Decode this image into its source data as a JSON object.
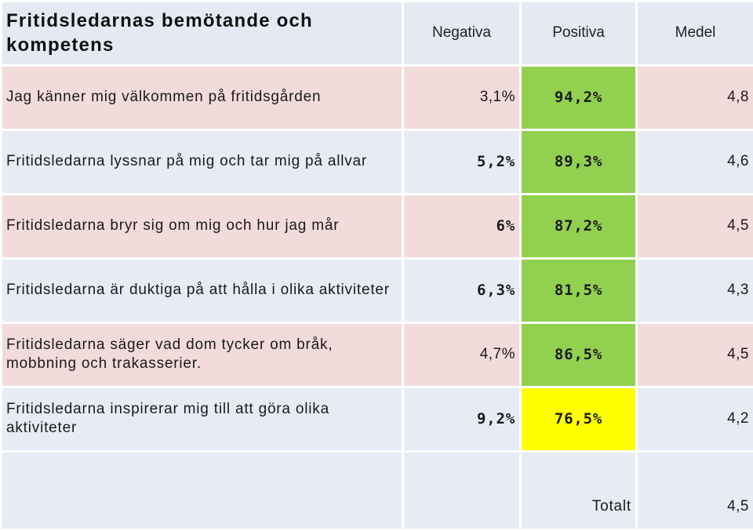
{
  "table": {
    "title": "Fritidsledarnas bemötande och kompetens",
    "columns": [
      "Negativa",
      "Positiva",
      "Medel"
    ],
    "rows": [
      {
        "label": "Jag känner mig välkommen på fritidsgården",
        "negativa": "3,1%",
        "positiva": "94,2%",
        "medel": "4,8",
        "positiva_color": "#92d050",
        "negativa_color": "#1a1a1a"
      },
      {
        "label": "Fritidsledarna lyssnar på mig och tar mig på allvar",
        "negativa": "5,2%",
        "positiva": "89,3%",
        "medel": "4,6",
        "positiva_color": "#92d050",
        "negativa_color": "#1a1a1a"
      },
      {
        "label": "Fritidsledarna bryr sig om mig och hur jag mår",
        "negativa": "6%",
        "positiva": "87,2%",
        "medel": "4,5",
        "positiva_color": "#92d050",
        "negativa_color": "#1a1a1a"
      },
      {
        "label": "Fritidsledarna är duktiga på att hålla i olika aktiviteter",
        "negativa": "6,3%",
        "positiva": "81,5%",
        "medel": "4,3",
        "positiva_color": "#92d050",
        "negativa_color": "#1a1a1a"
      },
      {
        "label": "Fritidsledarna säger vad dom tycker om bråk, mobbning och trakasserier.",
        "negativa": "4,7%",
        "positiva": "86,5%",
        "medel": "4,5",
        "positiva_color": "#92d050",
        "negativa_color": "#1a1a1a"
      },
      {
        "label": "Fritidsledarna inspirerar mig till att göra olika aktiviteter",
        "negativa": "9,2%",
        "positiva": "76,5%",
        "medel": "4,2",
        "positiva_color": "#ffff00",
        "negativa_color": "#c00000"
      }
    ],
    "total": {
      "label": "Totalt",
      "value": "4,5"
    }
  }
}
